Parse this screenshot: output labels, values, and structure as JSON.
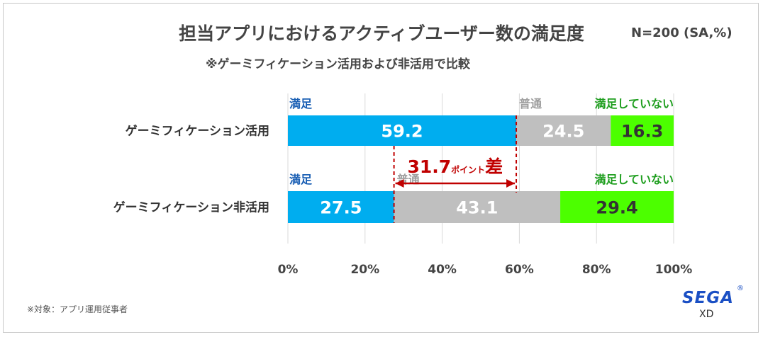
{
  "header": {
    "title": "担当アプリにおけるアクティブユーザー数の満足度",
    "subtitle": "※ゲーミフィケーション活用および非活用で比較",
    "sample": "N=200 (SA,%)"
  },
  "footer": {
    "note": "※対象：アプリ運用従事者",
    "logo_main": "SEGA",
    "logo_reg": "®",
    "logo_sub": "XD"
  },
  "chart_data": {
    "type": "bar",
    "orientation": "horizontal",
    "stacked": true,
    "categories": [
      "ゲーミフィケーション活用",
      "ゲーミフィケーション非活用"
    ],
    "series": [
      {
        "name": "満足",
        "values": [
          59.2,
          27.5
        ],
        "color": "#00adef",
        "label_color": "#1a5fb4"
      },
      {
        "name": "普通",
        "values": [
          24.5,
          43.1
        ],
        "color": "#bfbfbf",
        "label_color": "#9e9e9e"
      },
      {
        "name": "満足していない",
        "values": [
          16.3,
          29.4
        ],
        "color": "#4cff00",
        "label_color": "#1e9e1e"
      }
    ],
    "xlim": [
      0,
      100
    ],
    "x_ticks": [
      "0%",
      "20%",
      "40%",
      "60%",
      "80%",
      "100%"
    ],
    "grid": true,
    "annotation": {
      "value": "31.7",
      "small": "ポイント",
      "big": "差",
      "from": 27.5,
      "to": 59.2,
      "color": "#c00000"
    }
  }
}
